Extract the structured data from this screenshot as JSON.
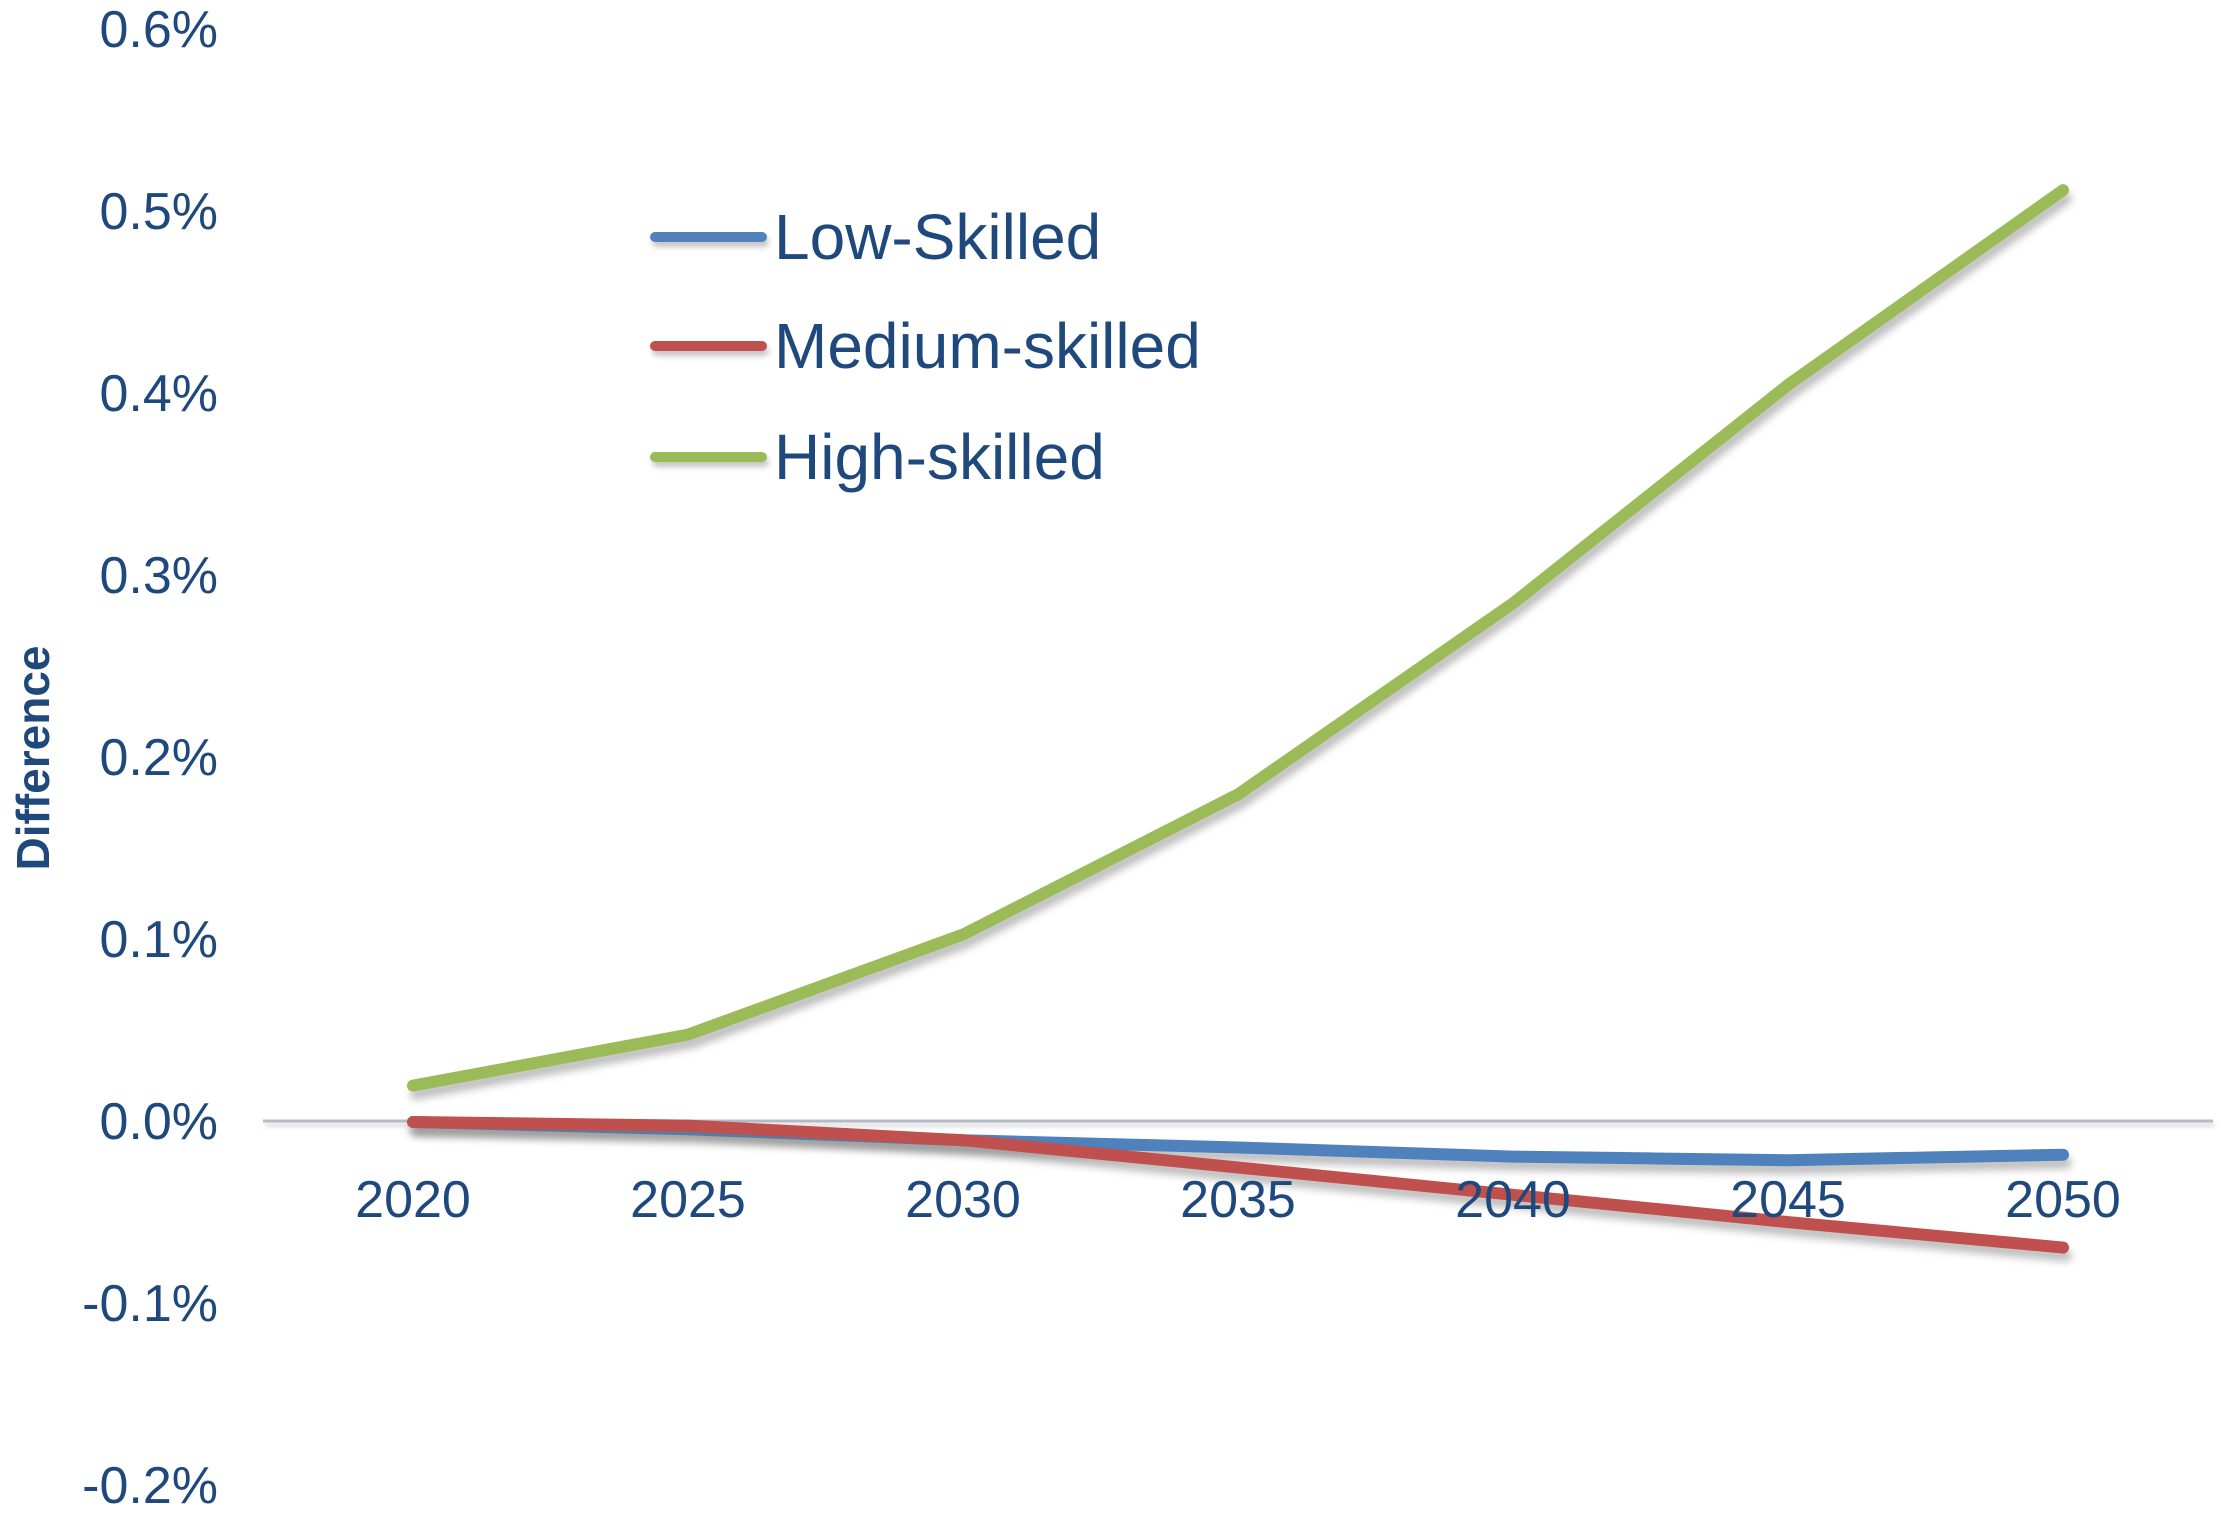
{
  "figure": {
    "ylabel": "Difference",
    "background_color": "#FFFFFF",
    "text_color": "#1F497D",
    "axis_line_color": "#B4BAC6"
  },
  "axis": {
    "y_ticks": [
      "0.6%",
      "0.5%",
      "0.4%",
      "0.3%",
      "0.2%",
      "0.1%",
      "0.0%",
      "-0.1%",
      "-0.2%"
    ],
    "x_ticks": [
      "2020",
      "2025",
      "2030",
      "2035",
      "2040",
      "2045",
      "2050"
    ]
  },
  "legend": {
    "items": [
      {
        "label": "Low-Skilled",
        "color": "#4F81BD"
      },
      {
        "label": "Medium-skilled",
        "color": "#C0504D"
      },
      {
        "label": "High-skilled",
        "color": "#9BBB59"
      }
    ]
  },
  "chart_data": {
    "type": "line",
    "x": [
      2020,
      2025,
      2030,
      2035,
      2040,
      2045,
      2050
    ],
    "series": [
      {
        "name": "Low-Skilled",
        "color": "#4F81BD",
        "values": [
          0.0,
          -0.004,
          -0.01,
          -0.014,
          -0.019,
          -0.021,
          -0.018
        ]
      },
      {
        "name": "Medium-skilled",
        "color": "#C0504D",
        "values": [
          0.0,
          -0.002,
          -0.01,
          -0.025,
          -0.04,
          -0.055,
          -0.069
        ]
      },
      {
        "name": "High-skilled",
        "color": "#9BBB59",
        "values": [
          0.02,
          0.048,
          0.103,
          0.18,
          0.285,
          0.405,
          0.512
        ]
      }
    ],
    "title": "",
    "xlabel": "",
    "ylabel": "Difference",
    "y_unit": "%",
    "ylim": [
      -0.2,
      0.6
    ],
    "y_tick_step": 0.1,
    "grid": false,
    "legend_position": "inside-upper-left"
  }
}
